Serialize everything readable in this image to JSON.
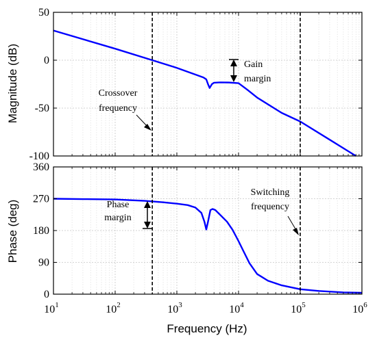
{
  "chart_data": [
    {
      "type": "line",
      "panel": "magnitude",
      "ylabel": "Magnitude (dB)",
      "xscale": "log",
      "xlim": [
        10,
        1000000
      ],
      "ylim": [
        -100,
        50
      ],
      "yticks": [
        50,
        0,
        -50,
        -100
      ],
      "grid": true,
      "series": [
        {
          "color": "#0000ff",
          "x": [
            10,
            100,
            400,
            1000,
            2000,
            2700,
            3000,
            3200,
            3400,
            3700,
            4000,
            5000,
            7000,
            10000,
            14000,
            20000,
            50000,
            100000,
            300000,
            800000
          ],
          "y": [
            31,
            12,
            0,
            -8,
            -15,
            -18,
            -20,
            -25,
            -29,
            -25,
            -23.5,
            -23.2,
            -23.3,
            -24,
            -31,
            -39,
            -55,
            -64,
            -83,
            -100
          ]
        }
      ],
      "vlines": [
        400,
        100000
      ],
      "annotations": [
        {
          "lines": [
            "Crossover",
            "frequency"
          ]
        },
        {
          "lines": [
            "Gain",
            "margin"
          ]
        }
      ]
    },
    {
      "type": "line",
      "panel": "phase",
      "ylabel": "Phase (deg)",
      "xlabel": "Frequency  (Hz)",
      "xscale": "log",
      "xlim": [
        10,
        1000000
      ],
      "ylim": [
        0,
        360
      ],
      "yticks": [
        360,
        270,
        180,
        90,
        0
      ],
      "xtick_labels": [
        "10",
        "10",
        "10",
        "10",
        "10",
        "10"
      ],
      "xtick_exponents": [
        "1",
        "2",
        "3",
        "4",
        "5",
        "6"
      ],
      "grid": true,
      "series": [
        {
          "color": "#0000ff",
          "x": [
            10,
            30,
            100,
            300,
            600,
            1000,
            1500,
            2000,
            2500,
            2800,
            3000,
            3200,
            3500,
            3800,
            4200,
            5000,
            6500,
            8000,
            10000,
            12000,
            15000,
            20000,
            30000,
            50000,
            100000,
            200000,
            500000,
            1000000
          ],
          "y": [
            270,
            269,
            268,
            264,
            260,
            256,
            252,
            245,
            230,
            205,
            183,
            205,
            238,
            241,
            238,
            225,
            205,
            182,
            150,
            122,
            88,
            57,
            38,
            25,
            14,
            9,
            5,
            4
          ]
        }
      ],
      "vlines": [
        400,
        100000
      ],
      "annotations": [
        {
          "lines": [
            "Phase",
            "margin"
          ]
        },
        {
          "lines": [
            "Switching",
            "frequency"
          ]
        }
      ]
    }
  ]
}
